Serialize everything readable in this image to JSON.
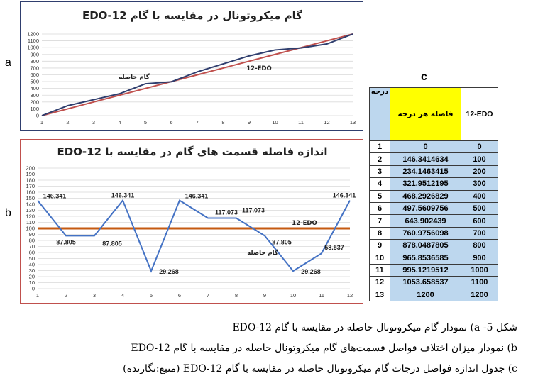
{
  "panel_labels": {
    "a": "a",
    "b": "b",
    "c": "c"
  },
  "colors": {
    "microtonal": "#2f3e6e",
    "edo": "#c0504d",
    "edo_line_b": "#c55a11",
    "series_b": "#4472c4",
    "frame_a": "#2f3e6e",
    "frame_b": "#c0504d"
  },
  "chart_data": [
    {
      "type": "line",
      "title": "گام میکروتونال در مقایسه با گام 12-EDO",
      "x": [
        1,
        2,
        3,
        4,
        5,
        6,
        7,
        8,
        9,
        10,
        11,
        12,
        13
      ],
      "series": [
        {
          "name": "گام حاصله",
          "values": [
            0,
            146.3414634,
            234.1463415,
            321.9512195,
            468.2926829,
            497.5609756,
            643.902439,
            760.9756098,
            878.0487805,
            965.8536585,
            995.1219512,
            1053.658537,
            1200
          ]
        },
        {
          "name": "12-EDO",
          "values": [
            0,
            100,
            200,
            300,
            400,
            500,
            600,
            700,
            800,
            900,
            1000,
            1100,
            1200
          ]
        }
      ],
      "ylim": [
        0,
        1200
      ],
      "yticks": [
        0,
        100,
        200,
        300,
        400,
        500,
        600,
        700,
        800,
        900,
        1000,
        1100,
        1200
      ],
      "grid": true
    },
    {
      "type": "line",
      "title": "اندازه فاصله قسمت های گام در مقایسه با 12-EDO",
      "x": [
        1,
        2,
        3,
        4,
        5,
        6,
        7,
        8,
        9,
        10,
        11,
        12
      ],
      "series": [
        {
          "name": "گام حاصله",
          "values": [
            146.341,
            87.805,
            87.805,
            146.341,
            29.268,
            146.341,
            117.073,
            117.073,
            87.805,
            29.268,
            58.537,
            146.341
          ]
        },
        {
          "name": "12-EDO",
          "values": [
            100,
            100,
            100,
            100,
            100,
            100,
            100,
            100,
            100,
            100,
            100,
            100
          ]
        }
      ],
      "data_labels": [
        "146.341",
        "87.805",
        "87.805",
        "146.341",
        "29.268",
        "146.341",
        "117.073",
        "117.073",
        "87.805",
        "29.268",
        "58.537",
        "146.341"
      ],
      "ylim": [
        0,
        200
      ],
      "yticks": [
        0,
        10,
        20,
        30,
        40,
        50,
        60,
        70,
        80,
        90,
        100,
        110,
        120,
        130,
        140,
        150,
        160,
        170,
        180,
        190,
        200
      ],
      "grid": true
    },
    {
      "type": "table",
      "headers": [
        "درجه",
        "فاصله هر درجه",
        "12-EDO"
      ],
      "rows": [
        [
          "1",
          "0",
          "0"
        ],
        [
          "2",
          "146.3414634",
          "100"
        ],
        [
          "3",
          "234.1463415",
          "200"
        ],
        [
          "4",
          "321.9512195",
          "300"
        ],
        [
          "5",
          "468.2926829",
          "400"
        ],
        [
          "6",
          "497.5609756",
          "500"
        ],
        [
          "7",
          "643.902439",
          "600"
        ],
        [
          "8",
          "760.9756098",
          "700"
        ],
        [
          "9",
          "878.0487805",
          "800"
        ],
        [
          "10",
          "965.8536585",
          "900"
        ],
        [
          "11",
          "995.1219512",
          "1000"
        ],
        [
          "12",
          "1053.658537",
          "1100"
        ],
        [
          "13",
          "1200",
          "1200"
        ]
      ]
    }
  ],
  "caption": {
    "line1": "شکل 5-   a)  نمودار گام میکروتونال حاصله در مقایسه با گام 12-EDO",
    "line2": "b)  نمودار میزان اختلاف فواصل قسمت‌های گام میکروتونال حاصله در مقایسه با گام 12-EDO",
    "line3": "c)  جدول اندازه فواصل درجات گام میکروتونال حاصله در مقایسه با گام 12-EDO (منبع:نگارنده)"
  }
}
